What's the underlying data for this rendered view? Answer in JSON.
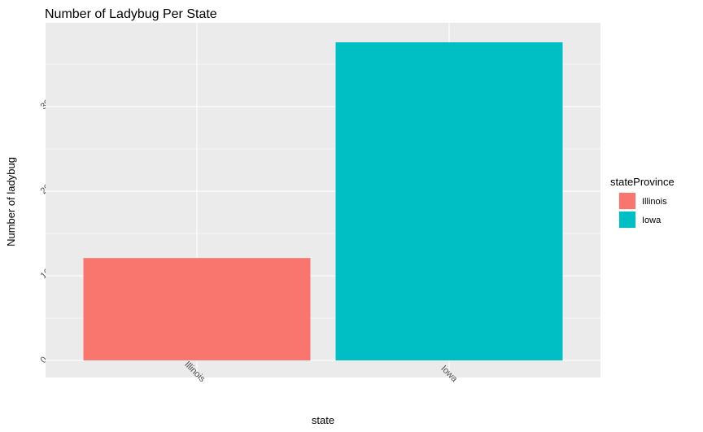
{
  "chart_data": {
    "type": "bar",
    "title": "Number of Ladybug Per State",
    "xlabel": "state",
    "ylabel": "Number of ladybug",
    "categories": [
      "Illinois",
      "Iowa"
    ],
    "values": [
      121,
      376
    ],
    "colors": [
      "#F8766D",
      "#00BFC4"
    ],
    "ylim": [
      0,
      395
    ],
    "y_ticks": [
      0,
      100,
      200,
      300
    ],
    "y_tick_labels": [
      "0",
      "100",
      "200",
      "300"
    ],
    "y_tick_labels_visible": [
      "0",
      "10",
      "20",
      "30"
    ],
    "grid": true,
    "panel_background": "#EBEBEB",
    "grid_color": "#FFFFFF",
    "legend": {
      "title": "stateProvince",
      "placement": "right",
      "entries": [
        {
          "label": "Illinois",
          "color": "#F8766D"
        },
        {
          "label": "Iowa",
          "color": "#00BFC4"
        }
      ]
    }
  }
}
